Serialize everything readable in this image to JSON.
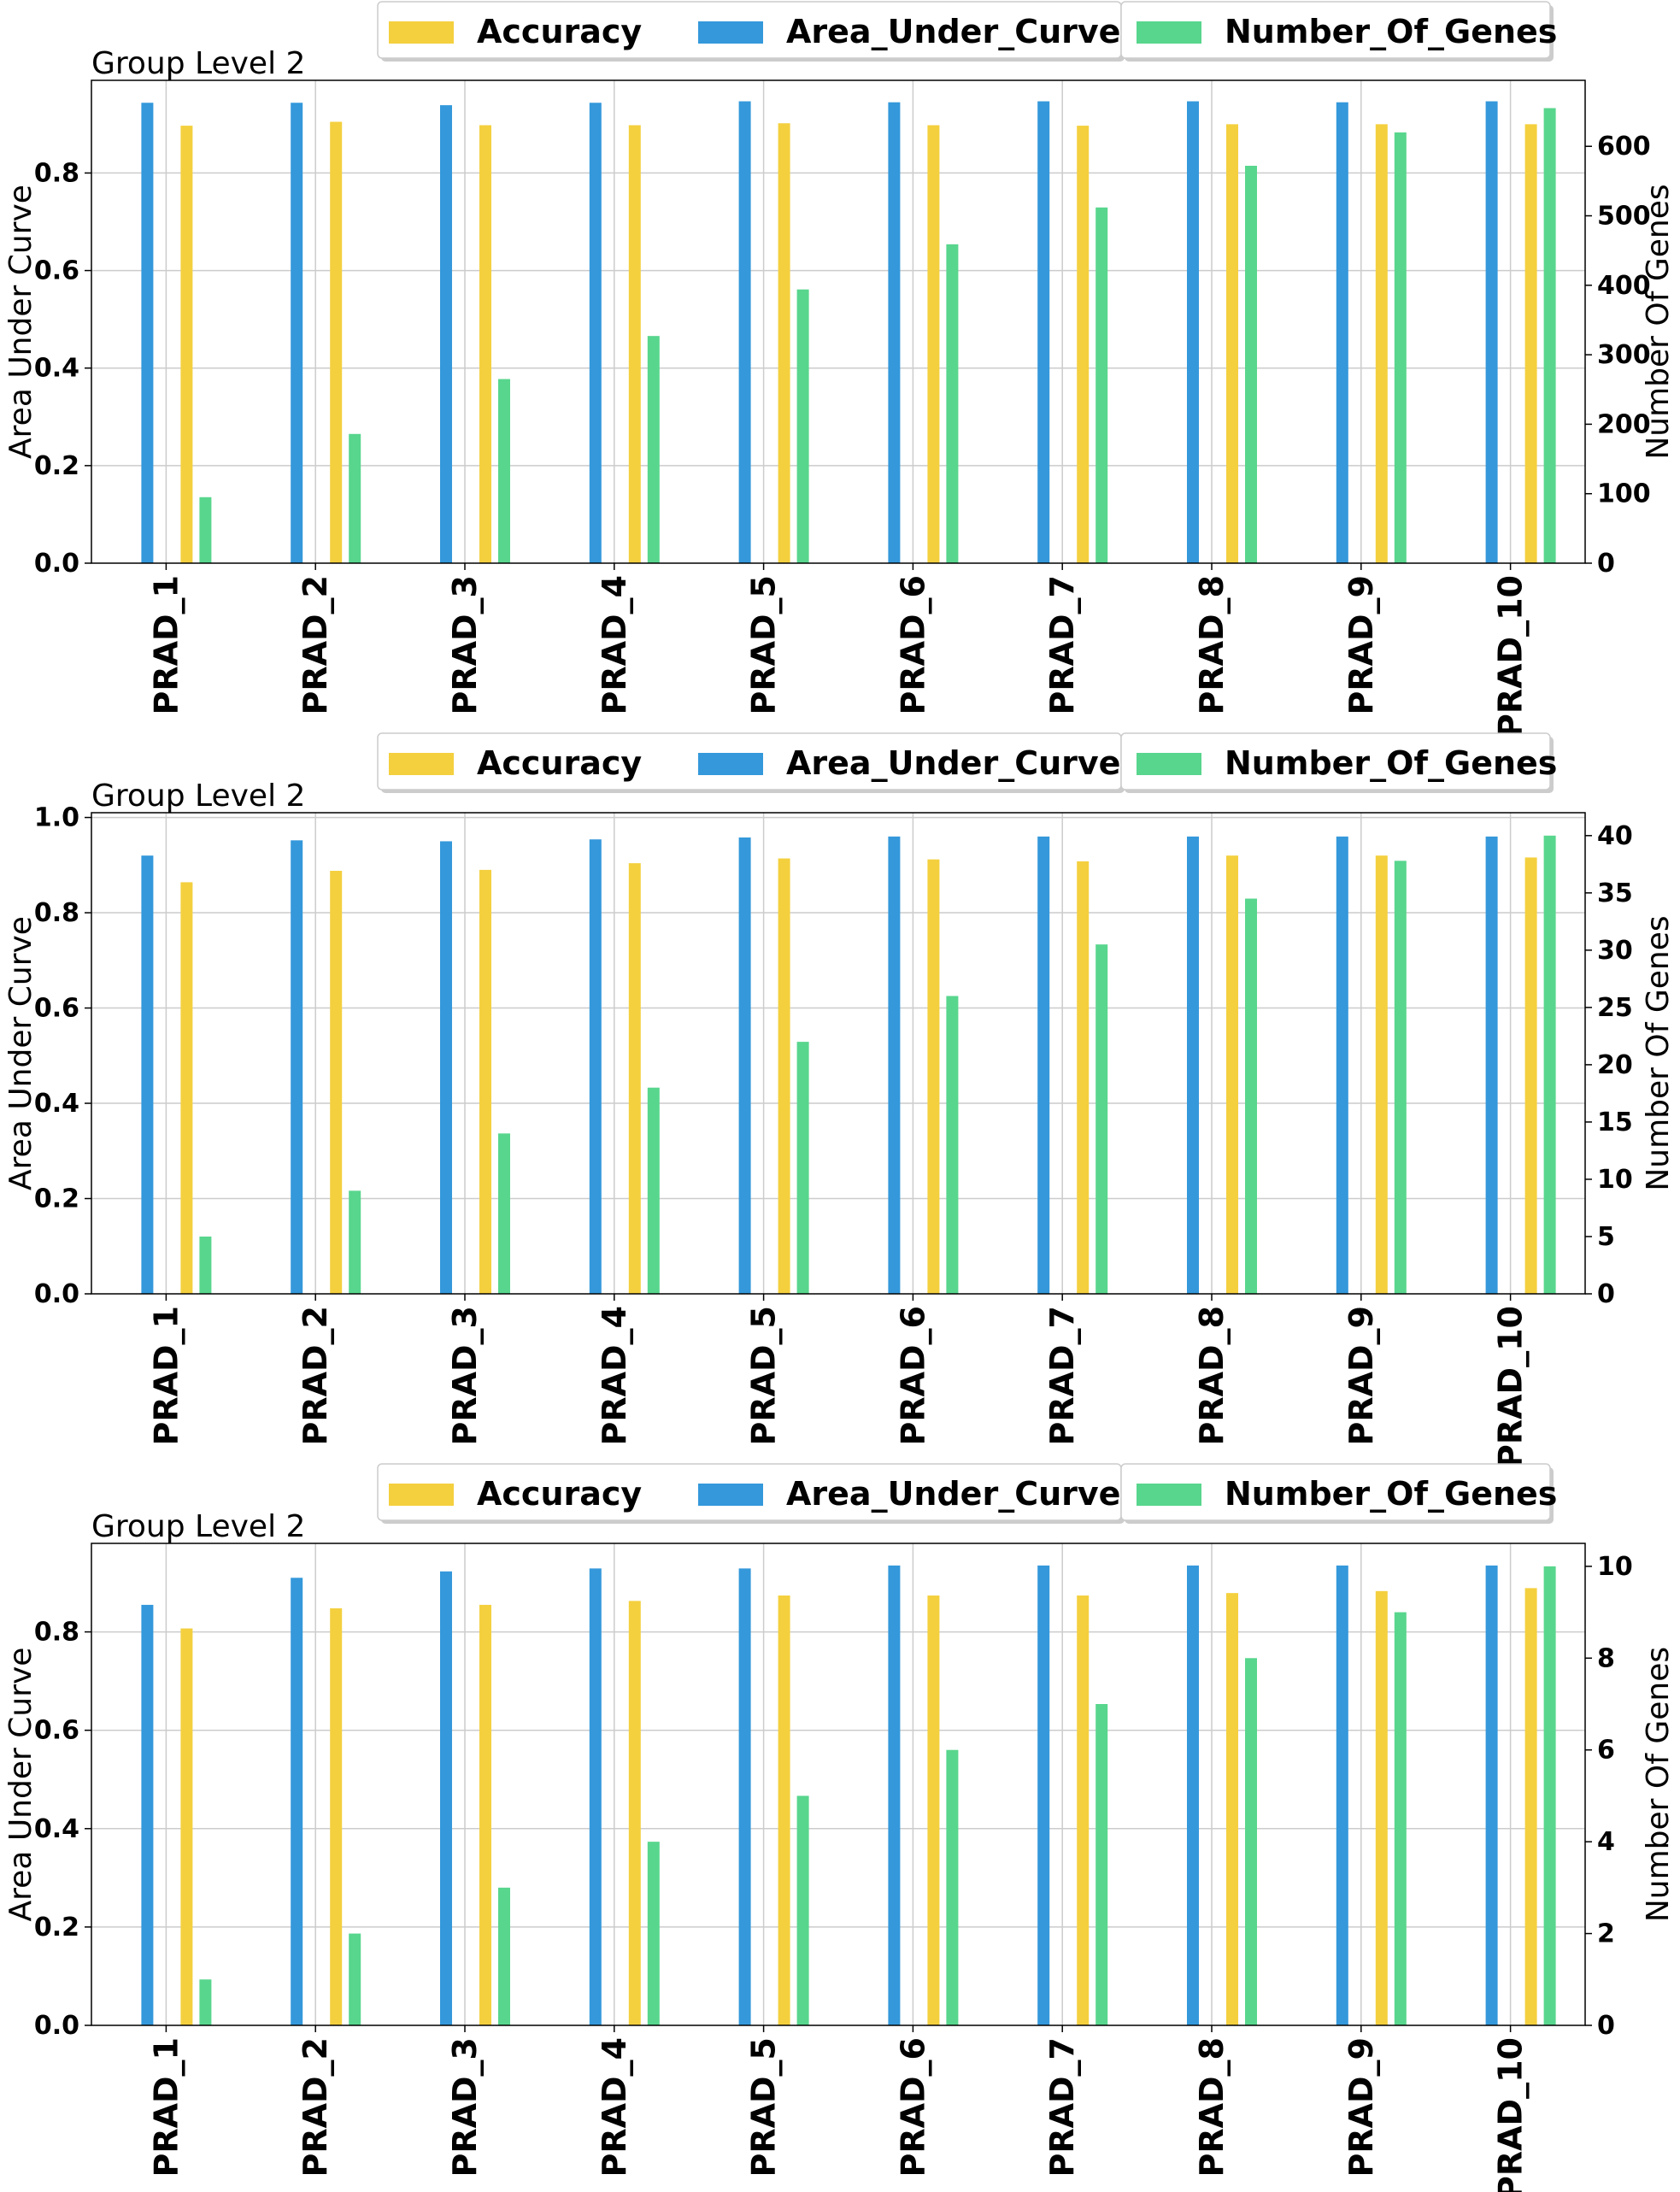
{
  "chart_data": [
    {
      "type": "bar",
      "title": "Group Level 2",
      "ylabel": "Area Under Curve",
      "y2label": "Number Of Genes",
      "categories": [
        "PRAD_1",
        "PRAD_2",
        "PRAD_3",
        "PRAD_4",
        "PRAD_5",
        "PRAD_6",
        "PRAD_7",
        "PRAD_8",
        "PRAD_9",
        "PRAD_10"
      ],
      "ylim": [
        0,
        0.99
      ],
      "y2lim": [
        0,
        695
      ],
      "yticks": [
        "0.0",
        "0.2",
        "0.4",
        "0.6",
        "0.8"
      ],
      "y2ticks": [
        "0",
        "100",
        "200",
        "300",
        "400",
        "500",
        "600"
      ],
      "series": [
        {
          "name": "Area_Under_Curve",
          "axis": "left",
          "color": "#3498db",
          "values": [
            0.944,
            0.944,
            0.939,
            0.944,
            0.947,
            0.945,
            0.947,
            0.947,
            0.945,
            0.947
          ]
        },
        {
          "name": "Accuracy",
          "axis": "left",
          "color": "#f4d03f",
          "values": [
            0.897,
            0.905,
            0.898,
            0.898,
            0.902,
            0.898,
            0.897,
            0.9,
            0.9,
            0.9
          ]
        },
        {
          "name": "Number_Of_Genes",
          "axis": "right",
          "color": "#58d68d",
          "values": [
            95,
            186,
            265,
            327,
            394,
            459,
            512,
            572,
            620,
            655
          ]
        }
      ],
      "legend": {
        "placement": "top-center",
        "entries": [
          "Accuracy",
          "Area_Under_Curve",
          "Number_Of_Genes"
        ]
      },
      "grid": "y"
    },
    {
      "type": "bar",
      "title": "Group Level 2",
      "ylabel": "Area Under Curve",
      "y2label": "Number Of Genes",
      "categories": [
        "PRAD_1",
        "PRAD_2",
        "PRAD_3",
        "PRAD_4",
        "PRAD_5",
        "PRAD_6",
        "PRAD_7",
        "PRAD_8",
        "PRAD_9",
        "PRAD_10"
      ],
      "ylim": [
        0,
        1.01
      ],
      "y2lim": [
        0,
        42
      ],
      "yticks": [
        "0.0",
        "0.2",
        "0.4",
        "0.6",
        "0.8",
        "1.0"
      ],
      "y2ticks": [
        "0",
        "5",
        "10",
        "15",
        "20",
        "25",
        "30",
        "35",
        "40"
      ],
      "series": [
        {
          "name": "Area_Under_Curve",
          "axis": "left",
          "color": "#3498db",
          "values": [
            0.92,
            0.952,
            0.95,
            0.954,
            0.958,
            0.96,
            0.96,
            0.96,
            0.96,
            0.96
          ]
        },
        {
          "name": "Accuracy",
          "axis": "left",
          "color": "#f4d03f",
          "values": [
            0.864,
            0.888,
            0.89,
            0.904,
            0.914,
            0.912,
            0.908,
            0.92,
            0.92,
            0.916
          ]
        },
        {
          "name": "Number_Of_Genes",
          "axis": "right",
          "color": "#58d68d",
          "values": [
            5,
            9,
            14,
            18,
            22,
            26,
            30.5,
            34.5,
            37.8,
            40
          ]
        }
      ],
      "legend": {
        "placement": "top-center",
        "entries": [
          "Accuracy",
          "Area_Under_Curve",
          "Number_Of_Genes"
        ]
      },
      "grid": "y"
    },
    {
      "type": "bar",
      "title": "Group Level 2",
      "ylabel": "Area Under Curve",
      "y2label": "Number Of Genes",
      "categories": [
        "PRAD_1",
        "PRAD_2",
        "PRAD_3",
        "PRAD_4",
        "PRAD_5",
        "PRAD_6",
        "PRAD_7",
        "PRAD_8",
        "PRAD_9",
        "PRAD_10"
      ],
      "ylim": [
        0,
        0.98
      ],
      "y2lim": [
        0,
        10.5
      ],
      "yticks": [
        "0.0",
        "0.2",
        "0.4",
        "0.6",
        "0.8"
      ],
      "y2ticks": [
        "0",
        "2",
        "4",
        "6",
        "8",
        "10"
      ],
      "series": [
        {
          "name": "Area_Under_Curve",
          "axis": "left",
          "color": "#3498db",
          "values": [
            0.855,
            0.91,
            0.923,
            0.929,
            0.929,
            0.935,
            0.935,
            0.935,
            0.935,
            0.935
          ]
        },
        {
          "name": "Accuracy",
          "axis": "left",
          "color": "#f4d03f",
          "values": [
            0.807,
            0.848,
            0.855,
            0.863,
            0.874,
            0.874,
            0.874,
            0.879,
            0.883,
            0.889
          ]
        },
        {
          "name": "Number_Of_Genes",
          "axis": "right",
          "color": "#58d68d",
          "values": [
            1,
            2,
            3,
            4,
            5,
            6,
            7,
            8,
            9,
            10
          ]
        }
      ],
      "legend": {
        "placement": "top-center",
        "entries": [
          "Accuracy",
          "Area_Under_Curve",
          "Number_Of_Genes"
        ]
      },
      "grid": "y"
    }
  ]
}
